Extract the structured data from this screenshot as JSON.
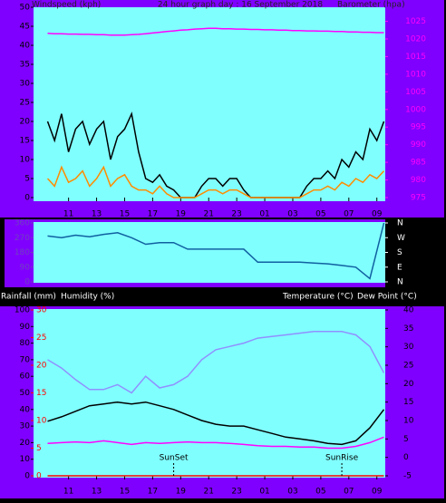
{
  "chart_data": [
    {
      "type": "line",
      "title": "24 hour graph day : 16 September 2018",
      "y_label": "Windspeed (kph)",
      "y2_label": "Barometer (hpa)",
      "x": [
        9.5,
        10,
        10.5,
        11,
        11.5,
        12,
        12.5,
        13,
        13.5,
        14,
        14.5,
        15,
        15.5,
        16,
        16.5,
        17,
        17.5,
        18,
        18.5,
        19,
        19.5,
        20,
        20.5,
        21,
        21.5,
        22,
        22.5,
        23,
        23.5,
        24,
        24.5,
        25,
        25.5,
        26,
        26.5,
        27,
        27.5,
        28,
        28.5,
        29,
        29.5,
        30,
        30.5,
        31,
        31.5,
        32,
        32.5,
        33,
        33.5
      ],
      "xlim": [
        8.5,
        33.6
      ],
      "xticks": [
        11,
        13,
        15,
        17,
        19,
        21,
        23,
        {
          "value": 25,
          "label": "01"
        },
        {
          "value": 27,
          "label": "03"
        },
        {
          "value": 29,
          "label": "05"
        },
        {
          "value": 31,
          "label": "07"
        },
        {
          "value": 33,
          "label": "09"
        }
      ],
      "ylim": [
        0,
        50
      ],
      "yticks": [
        0,
        5,
        10,
        15,
        20,
        25,
        30,
        35,
        40,
        45,
        50
      ],
      "y2lim": [
        975,
        1029
      ],
      "y2ticks": [
        975,
        980,
        985,
        990,
        995,
        1000,
        1005,
        1010,
        1015,
        1020,
        1025
      ],
      "series": [
        {
          "color": "#000000",
          "values": [
            20,
            15,
            22,
            12,
            18,
            20,
            14,
            18,
            20,
            10,
            16,
            18,
            22,
            12,
            5,
            4,
            6,
            3,
            2,
            0,
            0,
            0,
            3,
            5,
            5,
            3,
            5,
            5,
            2,
            0,
            0,
            0,
            0,
            0,
            0,
            0,
            0,
            3,
            5,
            5,
            7,
            5,
            10,
            8,
            12,
            10,
            18,
            15,
            20
          ]
        },
        {
          "color": "#ff8c00",
          "values": [
            5,
            3,
            8,
            4,
            5,
            7,
            3,
            5,
            8,
            3,
            5,
            6,
            3,
            2,
            2,
            1,
            3,
            1,
            0,
            0,
            0,
            0,
            1,
            2,
            2,
            1,
            2,
            2,
            1,
            0,
            0,
            0,
            0,
            0,
            0,
            0,
            0,
            1,
            2,
            2,
            3,
            2,
            4,
            3,
            5,
            4,
            6,
            5,
            7
          ]
        },
        {
          "color": "#ff00ff",
          "axis": "y2",
          "values": [
            1021.6,
            1021.5,
            1021.5,
            1021.4,
            1021.4,
            1021.3,
            1021.3,
            1021.2,
            1021.2,
            1021.1,
            1021.1,
            1021.1,
            1021.2,
            1021.3,
            1021.5,
            1021.7,
            1021.9,
            1022.1,
            1022.3,
            1022.5,
            1022.6,
            1022.8,
            1022.9,
            1023.0,
            1023.0,
            1022.9,
            1022.9,
            1022.8,
            1022.8,
            1022.7,
            1022.7,
            1022.6,
            1022.6,
            1022.5,
            1022.5,
            1022.4,
            1022.4,
            1022.3,
            1022.3,
            1022.2,
            1022.2,
            1022.1,
            1022.1,
            1022.0,
            1022.0,
            1021.9,
            1021.9,
            1021.8,
            1021.8
          ]
        }
      ]
    },
    {
      "type": "line",
      "x": [
        9.5,
        10.5,
        11.5,
        12.5,
        13.5,
        14.5,
        15.5,
        16.5,
        17.5,
        18.5,
        19.5,
        20.5,
        21.5,
        22.5,
        23.5,
        24.5,
        25.5,
        26.5,
        27.5,
        28.5,
        29.5,
        30.5,
        31.5,
        32.5,
        33.5
      ],
      "xlim": [
        8.5,
        33.6
      ],
      "ylim": [
        0,
        360
      ],
      "yticks": [
        0,
        90,
        180,
        270,
        360
      ],
      "y2lim": [
        0,
        360
      ],
      "y2ticks": [
        {
          "value": 360,
          "label": "N"
        },
        {
          "value": 270,
          "label": "W"
        },
        {
          "value": 180,
          "label": "S"
        },
        {
          "value": 90,
          "label": "E"
        },
        {
          "value": 0,
          "label": "N"
        }
      ],
      "series": [
        {
          "color": "#1060a0",
          "values": [
            280,
            270,
            285,
            275,
            290,
            300,
            270,
            230,
            240,
            240,
            200,
            200,
            200,
            200,
            200,
            120,
            120,
            120,
            120,
            115,
            110,
            100,
            90,
            20,
            360
          ]
        }
      ]
    },
    {
      "type": "line",
      "y3_label": "Rainfall (mm)",
      "y_label": "Humidity (%)",
      "y2_labels": [
        "Temperature (°C)",
        "Dew Point (°C)"
      ],
      "x": [
        9.5,
        10.5,
        11.5,
        12.5,
        13.5,
        14.5,
        15.5,
        16.5,
        17.5,
        18.5,
        19.5,
        20.5,
        21.5,
        22.5,
        23.5,
        24.5,
        25.5,
        26.5,
        27.5,
        28.5,
        29.5,
        30.5,
        31.5,
        32.5,
        33.5
      ],
      "xlim": [
        8.5,
        33.6
      ],
      "xticks": [
        11,
        13,
        15,
        17,
        19,
        21,
        23,
        {
          "value": 25,
          "label": "01"
        },
        {
          "value": 27,
          "label": "03"
        },
        {
          "value": 29,
          "label": "05"
        },
        {
          "value": 31,
          "label": "07"
        },
        {
          "value": 33,
          "label": "09"
        }
      ],
      "ylim": [
        0,
        100
      ],
      "yticks": [
        0,
        10,
        20,
        30,
        40,
        50,
        60,
        70,
        80,
        90,
        100
      ],
      "y2lim": [
        -5,
        40
      ],
      "y2ticks": [
        -5,
        0,
        5,
        10,
        15,
        20,
        25,
        30,
        35,
        40
      ],
      "y3lim": [
        0,
        30
      ],
      "y3ticks": [
        0,
        5,
        10,
        15,
        20,
        25,
        30
      ],
      "series": [
        {
          "color": "#9090ff",
          "values": [
            70,
            65,
            58,
            52,
            52,
            55,
            50,
            60,
            53,
            55,
            60,
            70,
            76,
            78,
            80,
            83,
            84,
            85,
            86,
            87,
            87,
            87,
            85,
            78,
            62
          ]
        },
        {
          "color": "#000000",
          "axis": "y2",
          "values": [
            9.8,
            11,
            12.5,
            14,
            14.5,
            15,
            14.5,
            15,
            14,
            13,
            11.5,
            10,
            9,
            8.5,
            8.5,
            7.5,
            6.5,
            5.5,
            5,
            4.5,
            3.8,
            3.5,
            4.5,
            8,
            13
          ]
        },
        {
          "color": "#ff00ff",
          "axis": "y2",
          "values": [
            3.8,
            4,
            4.2,
            4,
            4.5,
            4,
            3.5,
            4,
            3.8,
            4,
            4.2,
            4,
            4,
            3.8,
            3.5,
            3.2,
            3,
            3,
            2.8,
            2.8,
            2.5,
            2.5,
            3,
            4,
            5.5
          ]
        },
        {
          "color": "#ff0000",
          "axis": "y3",
          "values": [
            0,
            0,
            0,
            0,
            0,
            0,
            0,
            0,
            0,
            0,
            0,
            0,
            0,
            0,
            0,
            0,
            0,
            0,
            0,
            0,
            0,
            0,
            0,
            0,
            0
          ]
        }
      ],
      "annotations": [
        {
          "text": "SunSet",
          "x": 18.5
        },
        {
          "text": "SunRise",
          "x": 30.5
        }
      ]
    }
  ]
}
